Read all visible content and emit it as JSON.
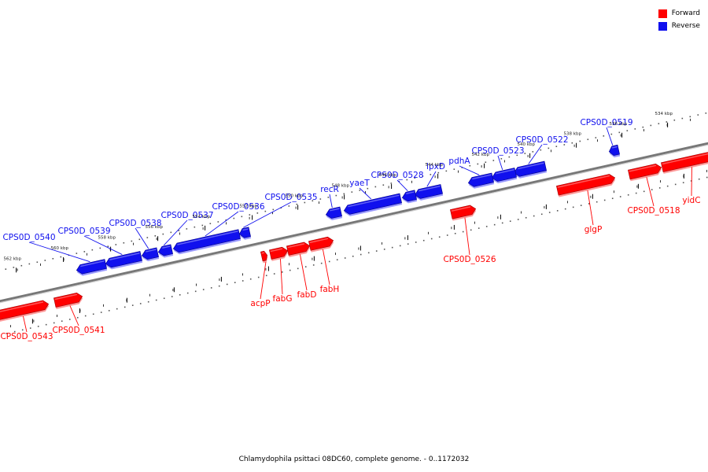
{
  "colors": {
    "forward": "#ff0000",
    "reverse": "#1010ee",
    "forward_light": "#ff9a9a",
    "reverse_light": "#9a9aff",
    "backbone": "#888888"
  },
  "legend": [
    {
      "label": "Forward",
      "color": "#ff0000"
    },
    {
      "label": "Reverse",
      "color": "#1010ee"
    }
  ],
  "caption": "Chlamydophila psittaci 08DC60, complete genome. - 0..1172032",
  "scale_labels": [
    "534 kbp",
    "536 kbp",
    "538 kbp",
    "540 kbp",
    "542 kbp",
    "544 kbp",
    "546 kbp",
    "548 kbp",
    "550 kbp",
    "552 kbp",
    "554 kbp",
    "556 kbp",
    "558 kbp",
    "560 kbp",
    "562 kbp"
  ],
  "genes": [
    {
      "name": "CPS0D_0519",
      "strand": "reverse"
    },
    {
      "name": "CPS0D_0522",
      "strand": "reverse"
    },
    {
      "name": "CPS0D_0523",
      "strand": "reverse"
    },
    {
      "name": "pdhA",
      "strand": "reverse"
    },
    {
      "name": "lpxD",
      "strand": "reverse"
    },
    {
      "name": "CPS0D_0528",
      "strand": "reverse"
    },
    {
      "name": "yaeT",
      "strand": "reverse"
    },
    {
      "name": "recR",
      "strand": "reverse"
    },
    {
      "name": "CPS0D_0535",
      "strand": "reverse"
    },
    {
      "name": "CPS0D_0536",
      "strand": "reverse"
    },
    {
      "name": "CPS0D_0537",
      "strand": "reverse"
    },
    {
      "name": "CPS0D_0538",
      "strand": "reverse"
    },
    {
      "name": "CPS0D_0539",
      "strand": "reverse"
    },
    {
      "name": "CPS0D_0540",
      "strand": "reverse"
    },
    {
      "name": "yidC",
      "strand": "forward"
    },
    {
      "name": "CPS0D_0518",
      "strand": "forward"
    },
    {
      "name": "glgP",
      "strand": "forward"
    },
    {
      "name": "CPS0D_0526",
      "strand": "forward"
    },
    {
      "name": "fabH",
      "strand": "forward"
    },
    {
      "name": "fabD",
      "strand": "forward"
    },
    {
      "name": "fabG",
      "strand": "forward"
    },
    {
      "name": "acpP",
      "strand": "forward"
    },
    {
      "name": "CPS0D_0541",
      "strand": "forward"
    },
    {
      "name": "CPS0D_0543",
      "strand": "forward"
    }
  ]
}
